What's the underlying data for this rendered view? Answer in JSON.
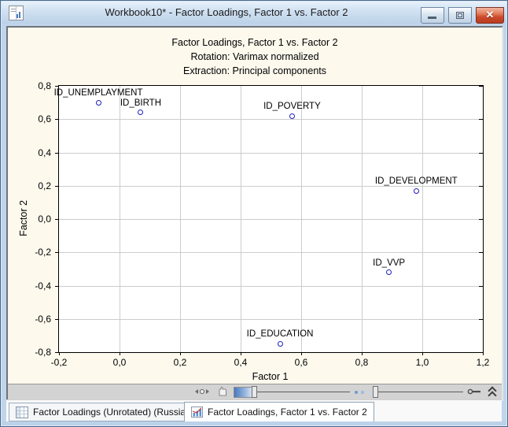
{
  "window": {
    "title": "Workbook10* - Factor Loadings, Factor 1 vs. Factor 2",
    "buttons": {
      "minimize": "minimize",
      "restore": "restore",
      "close": "close"
    }
  },
  "chart_data": {
    "type": "scatter",
    "title": "Factor Loadings, Factor 1 vs. Factor 2",
    "subtitle_rotation": "Rotation: Varimax normalized",
    "subtitle_extraction": "Extraction: Principal components",
    "xlabel": "Factor 1",
    "ylabel": "Factor 2",
    "xlim": [
      -0.2,
      1.2
    ],
    "ylim": [
      -0.8,
      0.8
    ],
    "grid": true,
    "x_tick_values": [
      -0.2,
      0.0,
      0.2,
      0.4,
      0.6,
      0.8,
      1.0,
      1.2
    ],
    "x_tick_labels": [
      "-0,2",
      "0,0",
      "0,2",
      "0,4",
      "0,6",
      "0,8",
      "1,0",
      "1,2"
    ],
    "y_tick_values": [
      0.8,
      0.6,
      0.4,
      0.2,
      0.0,
      -0.2,
      -0.4,
      -0.6,
      -0.8
    ],
    "y_tick_labels": [
      "0,8",
      "0,6",
      "0,4",
      "0,2",
      "0,0",
      "-0,2",
      "-0,4",
      "-0,6",
      "-0,8"
    ],
    "point_color": "#1f1fbf",
    "points": [
      {
        "label": "ID_UNEMPLAYMENT",
        "x": -0.07,
        "y": 0.7
      },
      {
        "label": "ID_BIRTH",
        "x": 0.07,
        "y": 0.64
      },
      {
        "label": "ID_POVERTY",
        "x": 0.57,
        "y": 0.62
      },
      {
        "label": "ID_DEVELOPMENT",
        "x": 0.98,
        "y": 0.17
      },
      {
        "label": "ID_VVP",
        "x": 0.89,
        "y": -0.32
      },
      {
        "label": "ID_EDUCATION",
        "x": 0.53,
        "y": -0.75
      }
    ]
  },
  "statusbar": {
    "icons": [
      "pan-fit-icon",
      "hand-icon",
      "brightness-gradient",
      "zoom-slider-left",
      "page-dots",
      "zoom-slider-right",
      "key-icon",
      "collapse-chevrons-icon"
    ]
  },
  "tabs": [
    {
      "label": "Factor Loadings (Unrotated) (Russia)",
      "icon": "spreadsheet-icon",
      "active": false
    },
    {
      "label": "Factor Loadings, Factor 1 vs. Factor 2",
      "icon": "graph-icon",
      "active": true
    }
  ],
  "colors": {
    "titlebar": "#cfe0f1",
    "window_frame": "#c0d5ea",
    "graph_background": "#fdf9ed",
    "plot_background": "#ffffff",
    "gridline": "#cccccc",
    "point": "#1f1fbf",
    "close_button": "#cd4a2b"
  }
}
